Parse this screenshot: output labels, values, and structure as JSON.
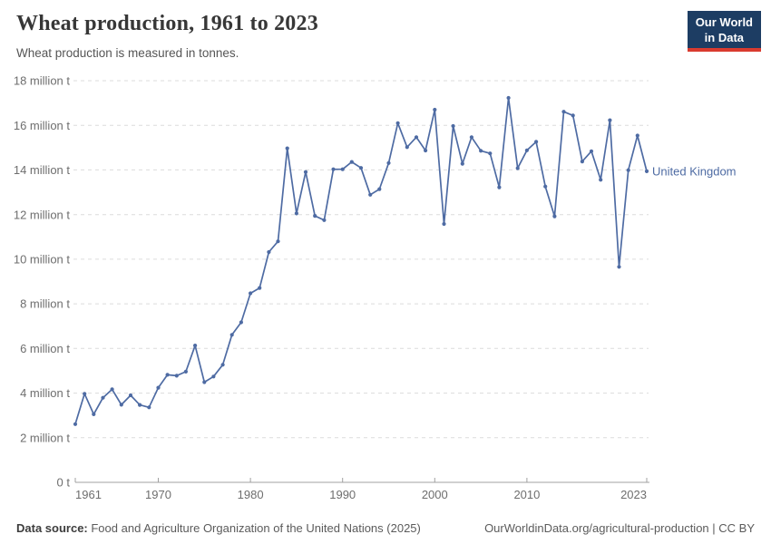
{
  "header": {
    "title": "Wheat production, 1961 to 2023",
    "subtitle": "Wheat production is measured in tonnes.",
    "logo": {
      "line1": "Our World",
      "line2": "in Data"
    }
  },
  "chart_data": {
    "type": "line",
    "title": "Wheat production, 1961 to 2023",
    "xlabel": "",
    "ylabel": "",
    "unit": "million tonnes",
    "ylim": [
      0,
      18
    ],
    "grid": true,
    "legend_position": "end-of-line",
    "y_ticks": [
      {
        "value": 0,
        "label": "0 t"
      },
      {
        "value": 2,
        "label": "2 million t"
      },
      {
        "value": 4,
        "label": "4 million t"
      },
      {
        "value": 6,
        "label": "6 million t"
      },
      {
        "value": 8,
        "label": "8 million t"
      },
      {
        "value": 10,
        "label": "10 million t"
      },
      {
        "value": 12,
        "label": "12 million t"
      },
      {
        "value": 14,
        "label": "14 million t"
      },
      {
        "value": 16,
        "label": "16 million t"
      },
      {
        "value": 18,
        "label": "18 million t"
      }
    ],
    "x_ticks": [
      1961,
      1970,
      1980,
      1990,
      2000,
      2010,
      2023
    ],
    "years": [
      1961,
      1962,
      1963,
      1964,
      1965,
      1966,
      1967,
      1968,
      1969,
      1970,
      1971,
      1972,
      1973,
      1974,
      1975,
      1976,
      1977,
      1978,
      1979,
      1980,
      1981,
      1982,
      1983,
      1984,
      1985,
      1986,
      1987,
      1988,
      1989,
      1990,
      1991,
      1992,
      1993,
      1994,
      1995,
      1996,
      1997,
      1998,
      1999,
      2000,
      2001,
      2002,
      2003,
      2004,
      2005,
      2006,
      2007,
      2008,
      2009,
      2010,
      2011,
      2012,
      2013,
      2014,
      2015,
      2016,
      2017,
      2018,
      2019,
      2020,
      2021,
      2022,
      2023
    ],
    "series": [
      {
        "name": "United Kingdom",
        "color": "#4e6ba3",
        "values": [
          2.61,
          3.97,
          3.05,
          3.79,
          4.17,
          3.48,
          3.9,
          3.47,
          3.36,
          4.24,
          4.82,
          4.78,
          4.96,
          6.13,
          4.49,
          4.74,
          5.27,
          6.61,
          7.17,
          8.47,
          8.71,
          10.32,
          10.8,
          14.97,
          12.05,
          13.91,
          11.94,
          11.75,
          14.03,
          14.03,
          14.36,
          14.09,
          12.89,
          13.14,
          14.31,
          16.1,
          15.02,
          15.47,
          14.87,
          16.7,
          11.58,
          15.97,
          14.28,
          15.47,
          14.86,
          14.74,
          13.22,
          17.23,
          14.08,
          14.88,
          15.26,
          13.26,
          11.92,
          16.61,
          16.44,
          14.38,
          14.84,
          13.56,
          16.23,
          9.66,
          13.99,
          15.54,
          13.94
        ]
      }
    ]
  },
  "footer": {
    "source_label": "Data source:",
    "source_text": " Food and Agriculture Organization of the United Nations (2025)",
    "rights": "OurWorldinData.org/agricultural-production | CC BY"
  },
  "colors": {
    "line": "#4e6ba3",
    "title": "#373737",
    "subtitle": "#555555",
    "axis_text": "#6e6e6e",
    "gridline": "#dcdcdc",
    "axis_line": "#a0a0a0",
    "logo_bg": "#1d3d63",
    "logo_bar": "#d93b2f",
    "footer_text": "#5b5b5b"
  }
}
